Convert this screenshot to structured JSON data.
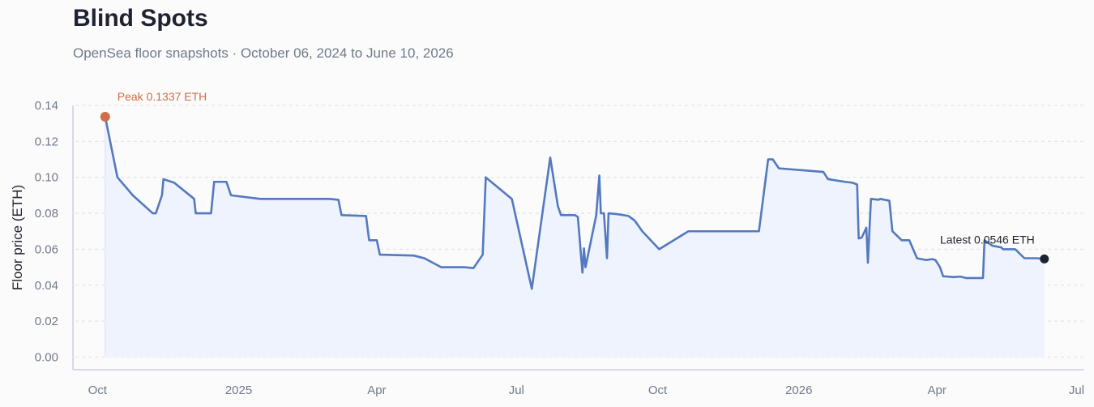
{
  "header": {
    "title": "Blind Spots",
    "subtitle": "OpenSea floor snapshots · October 06, 2024 to June 10, 2026"
  },
  "chart_data": {
    "type": "area",
    "title": "Blind Spots",
    "subtitle": "OpenSea floor snapshots · October 06, 2024 to June 10, 2026",
    "ylabel": "Floor price (ETH)",
    "xlabel": "",
    "xlim": [
      "2024-09-15",
      "2026-07-06"
    ],
    "ylim": [
      -0.007,
      0.14
    ],
    "yticks": [
      0.0,
      0.02,
      0.04,
      0.06,
      0.08,
      0.1,
      0.12,
      0.14
    ],
    "ytick_labels": [
      "0.00",
      "0.02",
      "0.04",
      "0.06",
      "0.08",
      "0.10",
      "0.12",
      "0.14"
    ],
    "xticks": [
      "2024-10-01",
      "2025-01-01",
      "2025-04-01",
      "2025-07-01",
      "2025-10-01",
      "2026-01-01",
      "2026-04-01",
      "2026-07-01"
    ],
    "xtick_labels": [
      "Oct",
      "2025",
      "Apr",
      "Jul",
      "Oct",
      "2026",
      "Apr",
      "Jul"
    ],
    "grid": true,
    "colors": {
      "line": "#5379c0",
      "fill": "#eef3fd",
      "peak": "#cf6e47",
      "latest": "#1f2230",
      "grid": "#e3e6ee",
      "axis": "#d8dae6"
    },
    "annotations": {
      "peak": {
        "label": "Peak 0.1337 ETH",
        "date": "2024-10-06",
        "value": 0.1337
      },
      "latest": {
        "label": "Latest 0.0546 ETH",
        "date": "2026-06-10",
        "value": 0.0546
      }
    },
    "series": [
      {
        "points": [
          [
            "2024-10-06",
            0.1337
          ],
          [
            "2024-10-14",
            0.1
          ],
          [
            "2024-10-24",
            0.09
          ],
          [
            "2024-11-06",
            0.08
          ],
          [
            "2024-11-08",
            0.08
          ],
          [
            "2024-11-12",
            0.09
          ],
          [
            "2024-11-13",
            0.099
          ],
          [
            "2024-11-20",
            0.097
          ],
          [
            "2024-12-03",
            0.088
          ],
          [
            "2024-12-04",
            0.08
          ],
          [
            "2024-12-14",
            0.08
          ],
          [
            "2024-12-16",
            0.0975
          ],
          [
            "2024-12-24",
            0.0975
          ],
          [
            "2024-12-27",
            0.09
          ],
          [
            "2025-01-15",
            0.088
          ],
          [
            "2025-02-11",
            0.088
          ],
          [
            "2025-03-01",
            0.088
          ],
          [
            "2025-03-07",
            0.0875
          ],
          [
            "2025-03-09",
            0.079
          ],
          [
            "2025-03-25",
            0.0785
          ],
          [
            "2025-03-27",
            0.065
          ],
          [
            "2025-04-01",
            0.065
          ],
          [
            "2025-04-03",
            0.057
          ],
          [
            "2025-04-25",
            0.0565
          ],
          [
            "2025-05-02",
            0.055
          ],
          [
            "2025-05-13",
            0.05
          ],
          [
            "2025-05-28",
            0.05
          ],
          [
            "2025-06-03",
            0.0495
          ],
          [
            "2025-06-09",
            0.057
          ],
          [
            "2025-06-11",
            0.1
          ],
          [
            "2025-06-28",
            0.088
          ],
          [
            "2025-07-11",
            0.038
          ],
          [
            "2025-07-23",
            0.111
          ],
          [
            "2025-07-28",
            0.084
          ],
          [
            "2025-07-30",
            0.079
          ],
          [
            "2025-08-08",
            0.079
          ],
          [
            "2025-08-10",
            0.078
          ],
          [
            "2025-08-13",
            0.047
          ],
          [
            "2025-08-14",
            0.0605
          ],
          [
            "2025-08-15",
            0.05
          ],
          [
            "2025-08-22",
            0.079
          ],
          [
            "2025-08-24",
            0.101
          ],
          [
            "2025-08-25",
            0.08
          ],
          [
            "2025-08-27",
            0.08
          ],
          [
            "2025-08-29",
            0.055
          ],
          [
            "2025-08-30",
            0.08
          ],
          [
            "2025-09-05",
            0.0795
          ],
          [
            "2025-09-12",
            0.0785
          ],
          [
            "2025-09-16",
            0.076
          ],
          [
            "2025-09-21",
            0.07
          ],
          [
            "2025-10-02",
            0.06
          ],
          [
            "2025-10-21",
            0.07
          ],
          [
            "2025-12-06",
            0.07
          ],
          [
            "2025-12-12",
            0.11
          ],
          [
            "2025-12-15",
            0.11
          ],
          [
            "2025-12-19",
            0.105
          ],
          [
            "2026-01-17",
            0.103
          ],
          [
            "2026-01-20",
            0.099
          ],
          [
            "2026-01-31",
            0.0975
          ],
          [
            "2026-02-05",
            0.097
          ],
          [
            "2026-02-08",
            0.096
          ],
          [
            "2026-02-09",
            0.066
          ],
          [
            "2026-02-11",
            0.0665
          ],
          [
            "2026-02-14",
            0.072
          ],
          [
            "2026-02-15",
            0.0525
          ],
          [
            "2026-02-17",
            0.088
          ],
          [
            "2026-02-22",
            0.0875
          ],
          [
            "2026-02-23",
            0.088
          ],
          [
            "2026-03-01",
            0.087
          ],
          [
            "2026-03-03",
            0.07
          ],
          [
            "2026-03-09",
            0.065
          ],
          [
            "2026-03-14",
            0.065
          ],
          [
            "2026-03-19",
            0.055
          ],
          [
            "2026-03-25",
            0.054
          ],
          [
            "2026-03-29",
            0.0545
          ],
          [
            "2026-03-31",
            0.054
          ],
          [
            "2026-04-03",
            0.05
          ],
          [
            "2026-04-05",
            0.045
          ],
          [
            "2026-04-12",
            0.0445
          ],
          [
            "2026-04-16",
            0.0448
          ],
          [
            "2026-04-20",
            0.044
          ],
          [
            "2026-05-01",
            0.044
          ],
          [
            "2026-05-02",
            0.065
          ],
          [
            "2026-05-07",
            0.062
          ],
          [
            "2026-05-13",
            0.061
          ],
          [
            "2026-05-14",
            0.06
          ],
          [
            "2026-05-22",
            0.06
          ],
          [
            "2026-05-28",
            0.055
          ],
          [
            "2026-06-05",
            0.055
          ],
          [
            "2026-06-10",
            0.0546
          ]
        ]
      }
    ]
  }
}
